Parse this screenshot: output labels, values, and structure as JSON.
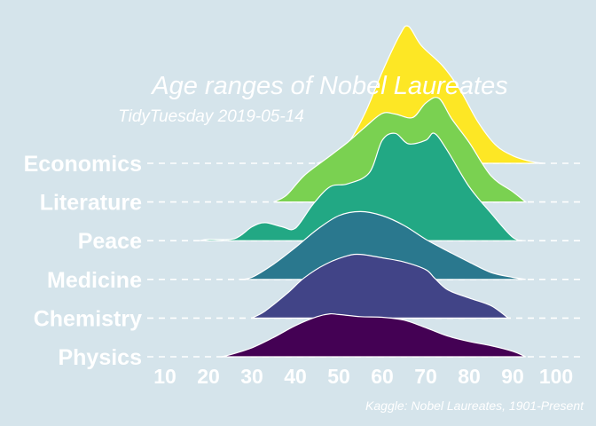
{
  "chart_data": {
    "type": "ridgeline",
    "title": "Age ranges of Nobel Laureates",
    "subtitle": "TidyTuesday 2019-05-14",
    "caption": "Kaggle: Nobel Laureates, 1901-Present",
    "xlabel": "",
    "ylabel": "",
    "x_ticks": [
      10,
      20,
      30,
      40,
      50,
      60,
      70,
      80,
      90,
      100
    ],
    "xlim": [
      10,
      100
    ],
    "grid": false,
    "legend": "none",
    "series": [
      {
        "category": "Physics",
        "color": "#440154",
        "points": [
          [
            23,
            0.0
          ],
          [
            25,
            0.03
          ],
          [
            30,
            0.13
          ],
          [
            35,
            0.28
          ],
          [
            40,
            0.45
          ],
          [
            45,
            0.58
          ],
          [
            48,
            0.62
          ],
          [
            50,
            0.61
          ],
          [
            55,
            0.58
          ],
          [
            60,
            0.57
          ],
          [
            65,
            0.53
          ],
          [
            70,
            0.42
          ],
          [
            75,
            0.3
          ],
          [
            80,
            0.22
          ],
          [
            85,
            0.16
          ],
          [
            90,
            0.08
          ],
          [
            93,
            0.0
          ]
        ]
      },
      {
        "category": "Chemistry",
        "color": "#414487",
        "points": [
          [
            30,
            0.0
          ],
          [
            33,
            0.1
          ],
          [
            38,
            0.35
          ],
          [
            42,
            0.58
          ],
          [
            47,
            0.78
          ],
          [
            52,
            0.9
          ],
          [
            55,
            0.92
          ],
          [
            60,
            0.87
          ],
          [
            65,
            0.81
          ],
          [
            70,
            0.7
          ],
          [
            72,
            0.58
          ],
          [
            75,
            0.41
          ],
          [
            80,
            0.29
          ],
          [
            85,
            0.18
          ],
          [
            89,
            0.0
          ]
        ]
      },
      {
        "category": "Medicine",
        "color": "#2a788e",
        "points": [
          [
            27,
            0.0
          ],
          [
            30,
            0.03
          ],
          [
            35,
            0.22
          ],
          [
            40,
            0.46
          ],
          [
            45,
            0.72
          ],
          [
            50,
            0.92
          ],
          [
            55,
            0.98
          ],
          [
            60,
            0.92
          ],
          [
            65,
            0.78
          ],
          [
            70,
            0.58
          ],
          [
            75,
            0.41
          ],
          [
            80,
            0.25
          ],
          [
            85,
            0.1
          ],
          [
            90,
            0.03
          ],
          [
            93,
            0.0
          ]
        ]
      },
      {
        "category": "Peace",
        "color": "#22a884",
        "points": [
          [
            18,
            0.0
          ],
          [
            20,
            0.02
          ],
          [
            26,
            0.03
          ],
          [
            30,
            0.2
          ],
          [
            33,
            0.26
          ],
          [
            37,
            0.2
          ],
          [
            40,
            0.18
          ],
          [
            44,
            0.52
          ],
          [
            48,
            0.78
          ],
          [
            52,
            0.82
          ],
          [
            57,
            0.98
          ],
          [
            60,
            1.45
          ],
          [
            63,
            1.55
          ],
          [
            66,
            1.4
          ],
          [
            70,
            1.45
          ],
          [
            72,
            1.55
          ],
          [
            75,
            1.3
          ],
          [
            80,
            0.78
          ],
          [
            85,
            0.4
          ],
          [
            90,
            0.05
          ],
          [
            93,
            0.0
          ]
        ]
      },
      {
        "category": "Literature",
        "color": "#7ad151",
        "points": [
          [
            35,
            0.0
          ],
          [
            38,
            0.1
          ],
          [
            42,
            0.38
          ],
          [
            47,
            0.62
          ],
          [
            52,
            0.86
          ],
          [
            56,
            1.08
          ],
          [
            60,
            1.28
          ],
          [
            63,
            1.27
          ],
          [
            67,
            1.22
          ],
          [
            70,
            1.43
          ],
          [
            73,
            1.5
          ],
          [
            76,
            1.2
          ],
          [
            80,
            0.86
          ],
          [
            85,
            0.38
          ],
          [
            90,
            0.15
          ],
          [
            93,
            0.0
          ]
        ]
      },
      {
        "category": "Economics",
        "color": "#fde725",
        "points": [
          [
            45,
            0.0
          ],
          [
            48,
            0.07
          ],
          [
            52,
            0.28
          ],
          [
            56,
            0.72
          ],
          [
            60,
            1.32
          ],
          [
            64,
            1.85
          ],
          [
            66,
            1.98
          ],
          [
            69,
            1.7
          ],
          [
            74,
            1.4
          ],
          [
            78,
            1.05
          ],
          [
            82,
            0.6
          ],
          [
            86,
            0.27
          ],
          [
            90,
            0.11
          ],
          [
            94,
            0.03
          ],
          [
            97,
            0.0
          ]
        ]
      }
    ]
  }
}
